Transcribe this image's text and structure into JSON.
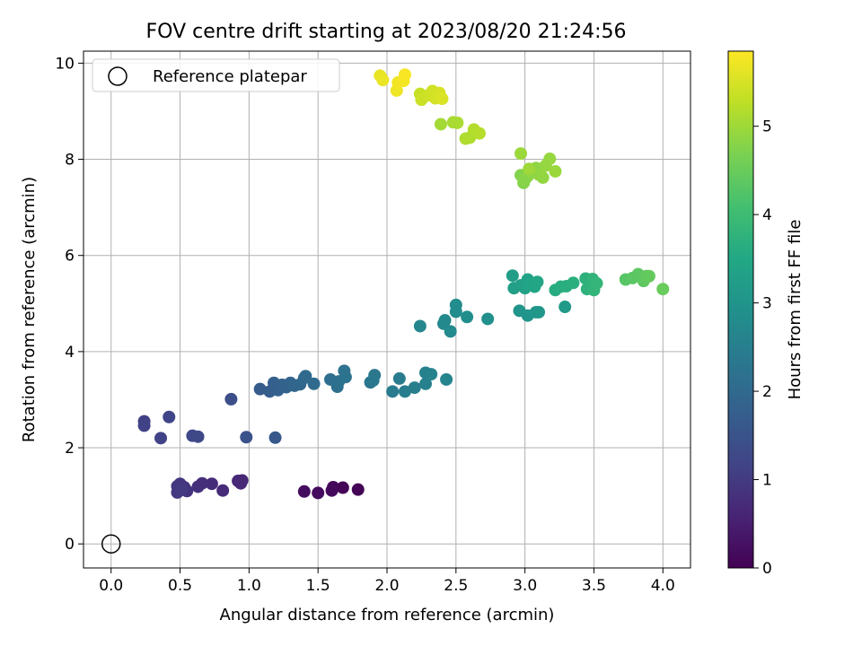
{
  "chart_data": {
    "type": "scatter",
    "title": "FOV centre drift starting at 2023/08/20 21:24:56",
    "xlabel": "Angular distance from reference (arcmin)",
    "ylabel": "Rotation from reference (arcmin)",
    "xlim": [
      -0.2,
      4.2
    ],
    "ylim": [
      -0.5,
      10.25
    ],
    "xticks": [
      0.0,
      0.5,
      1.0,
      1.5,
      2.0,
      2.5,
      3.0,
      3.5,
      4.0
    ],
    "xtick_labels": [
      "0.0",
      "0.5",
      "1.0",
      "1.5",
      "2.0",
      "2.5",
      "3.0",
      "3.5",
      "4.0"
    ],
    "yticks": [
      0,
      2,
      4,
      6,
      8,
      10
    ],
    "ytick_labels": [
      "0",
      "2",
      "4",
      "6",
      "8",
      "10"
    ],
    "grid": true,
    "legend": {
      "position": "top-left",
      "entries": [
        "Reference platepar"
      ]
    },
    "reference_point": {
      "x": 0.0,
      "y": 0.0,
      "label": "Reference platepar"
    },
    "colorbar": {
      "label": "Hours from first FF file",
      "range": [
        0,
        5.85
      ],
      "ticks": [
        0,
        1,
        2,
        3,
        4,
        5
      ],
      "tick_labels": [
        "0",
        "1",
        "2",
        "3",
        "4",
        "5"
      ],
      "colormap": "viridis"
    },
    "points": [
      {
        "x": 1.79,
        "y": 1.13,
        "t": 0.03
      },
      {
        "x": 1.68,
        "y": 1.17,
        "t": 0.07
      },
      {
        "x": 1.61,
        "y": 1.18,
        "t": 0.1
      },
      {
        "x": 1.6,
        "y": 1.11,
        "t": 0.13
      },
      {
        "x": 1.5,
        "y": 1.06,
        "t": 0.17
      },
      {
        "x": 1.4,
        "y": 1.09,
        "t": 0.2
      },
      {
        "x": 0.95,
        "y": 1.32,
        "t": 0.62
      },
      {
        "x": 0.92,
        "y": 1.31,
        "t": 0.65
      },
      {
        "x": 0.94,
        "y": 1.26,
        "t": 0.68
      },
      {
        "x": 0.81,
        "y": 1.11,
        "t": 0.72
      },
      {
        "x": 0.73,
        "y": 1.25,
        "t": 0.75
      },
      {
        "x": 0.66,
        "y": 1.26,
        "t": 0.78
      },
      {
        "x": 0.63,
        "y": 1.19,
        "t": 0.81
      },
      {
        "x": 0.55,
        "y": 1.1,
        "t": 0.84
      },
      {
        "x": 0.53,
        "y": 1.18,
        "t": 0.87
      },
      {
        "x": 0.5,
        "y": 1.25,
        "t": 0.9
      },
      {
        "x": 0.48,
        "y": 1.2,
        "t": 0.93
      },
      {
        "x": 0.48,
        "y": 1.07,
        "t": 0.96
      },
      {
        "x": 0.51,
        "y": 1.12,
        "t": 0.99
      },
      {
        "x": 0.24,
        "y": 2.55,
        "t": 1.1
      },
      {
        "x": 0.24,
        "y": 2.46,
        "t": 1.13
      },
      {
        "x": 0.36,
        "y": 2.2,
        "t": 1.16
      },
      {
        "x": 0.42,
        "y": 2.64,
        "t": 1.2
      },
      {
        "x": 0.59,
        "y": 2.25,
        "t": 1.26
      },
      {
        "x": 0.63,
        "y": 2.23,
        "t": 1.3
      },
      {
        "x": 0.87,
        "y": 3.01,
        "t": 1.4
      },
      {
        "x": 0.98,
        "y": 2.22,
        "t": 1.45
      },
      {
        "x": 1.19,
        "y": 2.21,
        "t": 1.6
      },
      {
        "x": 1.08,
        "y": 3.22,
        "t": 1.7
      },
      {
        "x": 1.15,
        "y": 3.17,
        "t": 1.73
      },
      {
        "x": 1.18,
        "y": 3.35,
        "t": 1.76
      },
      {
        "x": 1.21,
        "y": 3.2,
        "t": 1.79
      },
      {
        "x": 1.24,
        "y": 3.31,
        "t": 1.82
      },
      {
        "x": 1.27,
        "y": 3.26,
        "t": 1.85
      },
      {
        "x": 1.3,
        "y": 3.35,
        "t": 1.88
      },
      {
        "x": 1.33,
        "y": 3.29,
        "t": 1.91
      },
      {
        "x": 1.37,
        "y": 3.32,
        "t": 1.94
      },
      {
        "x": 1.4,
        "y": 3.45,
        "t": 1.97
      },
      {
        "x": 1.41,
        "y": 3.49,
        "t": 2.0
      },
      {
        "x": 1.47,
        "y": 3.33,
        "t": 2.03
      },
      {
        "x": 1.59,
        "y": 3.42,
        "t": 2.1
      },
      {
        "x": 1.64,
        "y": 3.27,
        "t": 2.13
      },
      {
        "x": 1.65,
        "y": 3.38,
        "t": 2.16
      },
      {
        "x": 1.69,
        "y": 3.6,
        "t": 2.19
      },
      {
        "x": 1.7,
        "y": 3.47,
        "t": 2.22
      },
      {
        "x": 1.88,
        "y": 3.36,
        "t": 2.28
      },
      {
        "x": 1.91,
        "y": 3.51,
        "t": 2.31
      },
      {
        "x": 1.9,
        "y": 3.4,
        "t": 2.34
      },
      {
        "x": 2.04,
        "y": 3.17,
        "t": 2.4
      },
      {
        "x": 2.09,
        "y": 3.44,
        "t": 2.43
      },
      {
        "x": 2.13,
        "y": 3.17,
        "t": 2.46
      },
      {
        "x": 2.2,
        "y": 3.25,
        "t": 2.49
      },
      {
        "x": 2.28,
        "y": 3.56,
        "t": 2.52
      },
      {
        "x": 2.28,
        "y": 3.33,
        "t": 2.55
      },
      {
        "x": 2.32,
        "y": 3.53,
        "t": 2.58
      },
      {
        "x": 2.43,
        "y": 3.42,
        "t": 2.61
      },
      {
        "x": 2.24,
        "y": 4.53,
        "t": 2.68
      },
      {
        "x": 2.41,
        "y": 4.58,
        "t": 2.71
      },
      {
        "x": 2.42,
        "y": 4.65,
        "t": 2.74
      },
      {
        "x": 2.46,
        "y": 4.42,
        "t": 2.77
      },
      {
        "x": 2.5,
        "y": 4.97,
        "t": 2.8
      },
      {
        "x": 2.5,
        "y": 4.83,
        "t": 2.83
      },
      {
        "x": 2.58,
        "y": 4.72,
        "t": 2.86
      },
      {
        "x": 2.73,
        "y": 4.68,
        "t": 2.89
      },
      {
        "x": 2.96,
        "y": 4.85,
        "t": 3.0
      },
      {
        "x": 3.02,
        "y": 4.75,
        "t": 3.03
      },
      {
        "x": 3.08,
        "y": 4.82,
        "t": 3.06
      },
      {
        "x": 3.1,
        "y": 4.82,
        "t": 3.09
      },
      {
        "x": 3.29,
        "y": 4.93,
        "t": 3.15
      },
      {
        "x": 2.91,
        "y": 5.58,
        "t": 3.25
      },
      {
        "x": 2.92,
        "y": 5.32,
        "t": 3.28
      },
      {
        "x": 2.97,
        "y": 5.38,
        "t": 3.31
      },
      {
        "x": 3.0,
        "y": 5.32,
        "t": 3.34
      },
      {
        "x": 3.02,
        "y": 5.5,
        "t": 3.37
      },
      {
        "x": 3.04,
        "y": 5.4,
        "t": 3.4
      },
      {
        "x": 3.07,
        "y": 5.35,
        "t": 3.43
      },
      {
        "x": 3.09,
        "y": 5.45,
        "t": 3.46
      },
      {
        "x": 3.22,
        "y": 5.28,
        "t": 3.6
      },
      {
        "x": 3.26,
        "y": 5.35,
        "t": 3.63
      },
      {
        "x": 3.3,
        "y": 5.36,
        "t": 3.66
      },
      {
        "x": 3.35,
        "y": 5.43,
        "t": 3.69
      },
      {
        "x": 3.44,
        "y": 5.52,
        "t": 3.72
      },
      {
        "x": 3.45,
        "y": 5.3,
        "t": 3.75
      },
      {
        "x": 3.49,
        "y": 5.51,
        "t": 3.78
      },
      {
        "x": 3.5,
        "y": 5.28,
        "t": 3.81
      },
      {
        "x": 3.52,
        "y": 5.42,
        "t": 3.84
      },
      {
        "x": 3.73,
        "y": 5.5,
        "t": 4.3
      },
      {
        "x": 3.78,
        "y": 5.53,
        "t": 4.33
      },
      {
        "x": 3.82,
        "y": 5.61,
        "t": 4.36
      },
      {
        "x": 3.86,
        "y": 5.47,
        "t": 4.39
      },
      {
        "x": 3.88,
        "y": 5.57,
        "t": 4.42
      },
      {
        "x": 3.9,
        "y": 5.57,
        "t": 4.45
      },
      {
        "x": 4.0,
        "y": 5.3,
        "t": 4.5
      },
      {
        "x": 2.97,
        "y": 7.67,
        "t": 4.75
      },
      {
        "x": 2.99,
        "y": 7.51,
        "t": 4.77
      },
      {
        "x": 3.0,
        "y": 7.58,
        "t": 4.79
      },
      {
        "x": 3.02,
        "y": 7.65,
        "t": 4.81
      },
      {
        "x": 3.05,
        "y": 7.73,
        "t": 4.83
      },
      {
        "x": 3.08,
        "y": 7.82,
        "t": 4.85
      },
      {
        "x": 3.1,
        "y": 7.68,
        "t": 4.87
      },
      {
        "x": 3.13,
        "y": 7.62,
        "t": 4.89
      },
      {
        "x": 3.15,
        "y": 7.87,
        "t": 4.91
      },
      {
        "x": 3.18,
        "y": 8.01,
        "t": 4.93
      },
      {
        "x": 3.22,
        "y": 7.75,
        "t": 4.95
      },
      {
        "x": 2.97,
        "y": 8.12,
        "t": 4.97
      },
      {
        "x": 3.03,
        "y": 7.8,
        "t": 4.99
      },
      {
        "x": 2.39,
        "y": 8.73,
        "t": 5.05
      },
      {
        "x": 2.48,
        "y": 8.77,
        "t": 5.08
      },
      {
        "x": 2.51,
        "y": 8.76,
        "t": 5.1
      },
      {
        "x": 2.57,
        "y": 8.43,
        "t": 5.13
      },
      {
        "x": 2.6,
        "y": 8.45,
        "t": 5.15
      },
      {
        "x": 2.63,
        "y": 8.62,
        "t": 5.18
      },
      {
        "x": 2.67,
        "y": 8.54,
        "t": 5.2
      },
      {
        "x": 2.24,
        "y": 9.36,
        "t": 5.35
      },
      {
        "x": 2.25,
        "y": 9.24,
        "t": 5.38
      },
      {
        "x": 2.3,
        "y": 9.33,
        "t": 5.41
      },
      {
        "x": 2.33,
        "y": 9.42,
        "t": 5.44
      },
      {
        "x": 2.35,
        "y": 9.27,
        "t": 5.47
      },
      {
        "x": 2.38,
        "y": 9.38,
        "t": 5.5
      },
      {
        "x": 2.4,
        "y": 9.26,
        "t": 5.53
      },
      {
        "x": 1.95,
        "y": 9.74,
        "t": 5.65
      },
      {
        "x": 1.97,
        "y": 9.65,
        "t": 5.68
      },
      {
        "x": 2.07,
        "y": 9.43,
        "t": 5.71
      },
      {
        "x": 2.08,
        "y": 9.6,
        "t": 5.74
      },
      {
        "x": 2.12,
        "y": 9.63,
        "t": 5.77
      },
      {
        "x": 2.13,
        "y": 9.76,
        "t": 5.8
      }
    ]
  }
}
